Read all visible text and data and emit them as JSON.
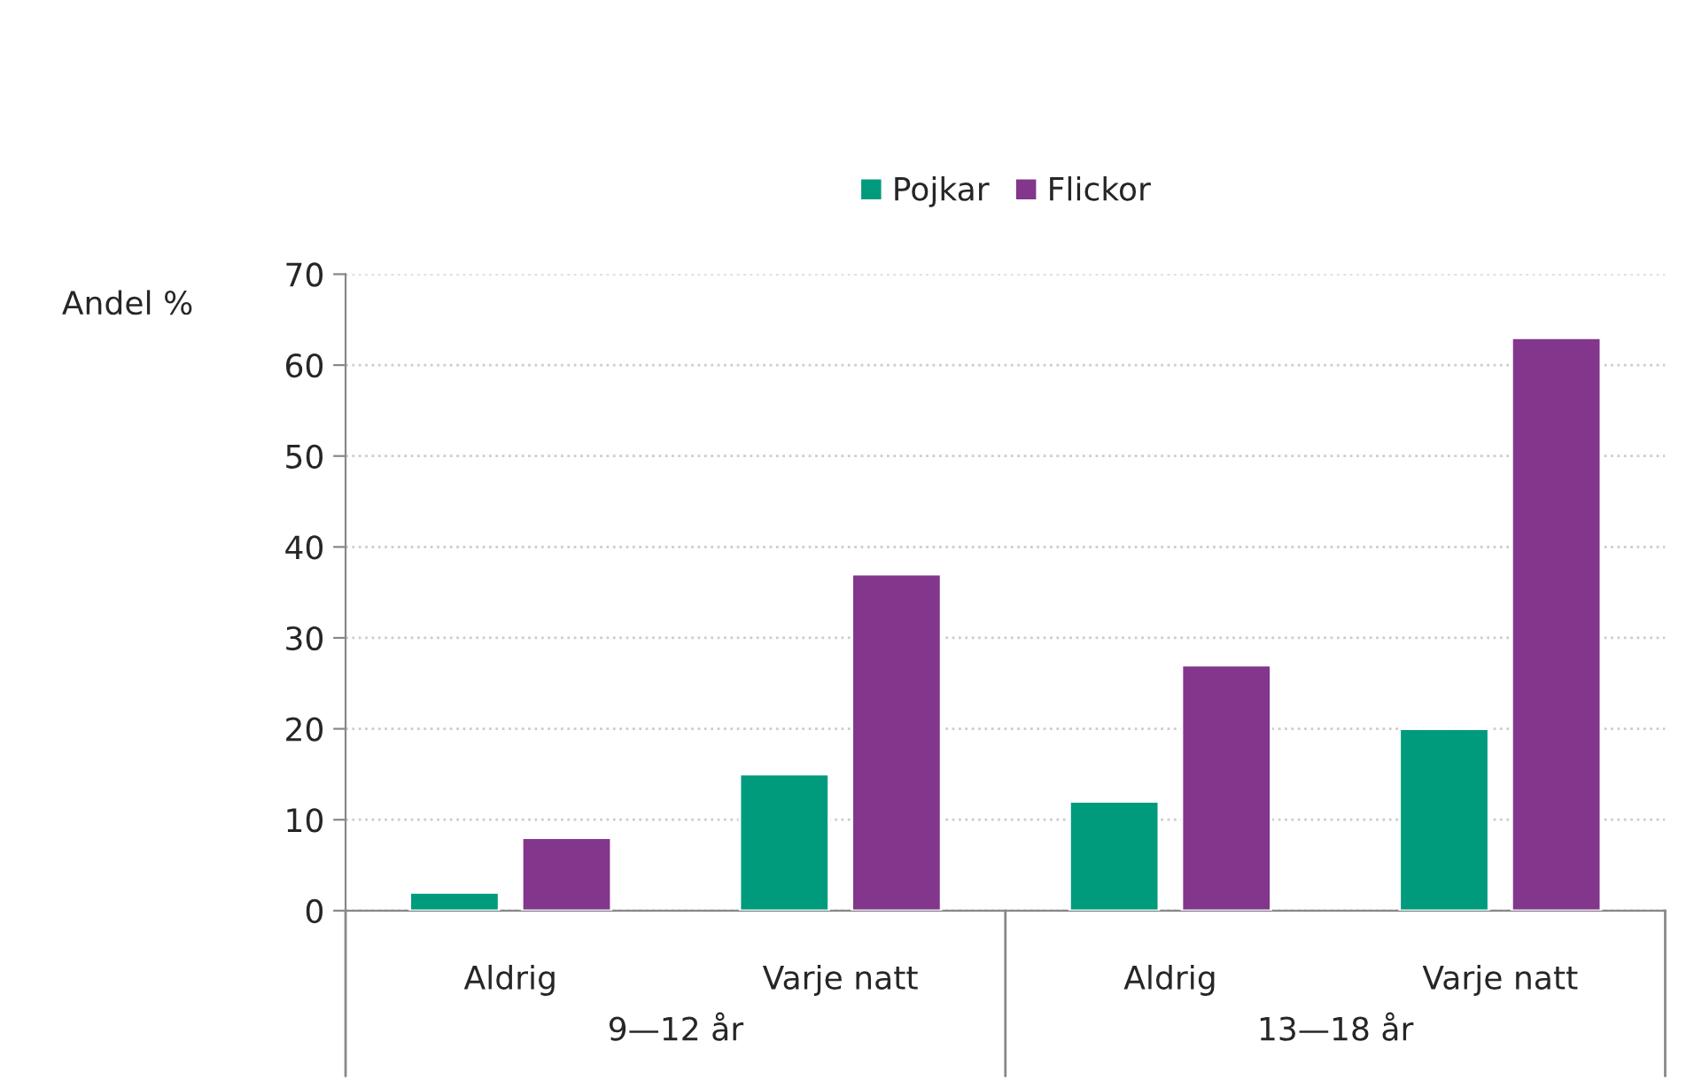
{
  "chart_data": {
    "type": "bar",
    "ylabel": "Andel %",
    "categories": [
      "Aldrig",
      "Varje natt",
      "Aldrig",
      "Varje natt"
    ],
    "series": [
      {
        "name": "Pojkar",
        "color": "#009b7d",
        "values": [
          2,
          15,
          12,
          20
        ]
      },
      {
        "name": "Flickor",
        "color": "#82368c",
        "values": [
          8,
          37,
          27,
          63
        ]
      }
    ],
    "annotations": [
      "9—12 år",
      "13—18 år"
    ],
    "ylim": [
      0,
      70
    ],
    "yticks": [
      0,
      10,
      20,
      30,
      40,
      50,
      60,
      70
    ],
    "grid": "y",
    "legend": "top"
  }
}
